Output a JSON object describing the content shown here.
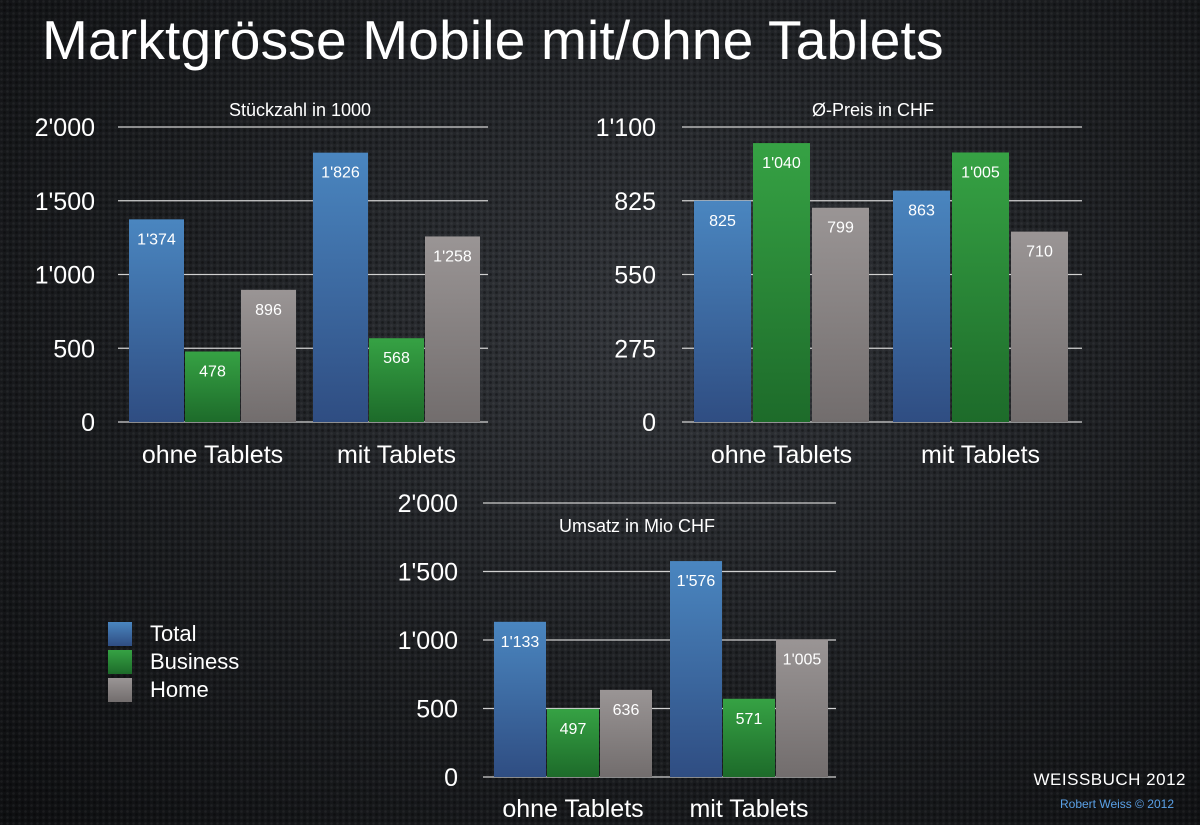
{
  "title": "Marktgrösse Mobile mit/ohne Tablets",
  "colors": {
    "total": "#3f73a6",
    "business": "#2c8a38",
    "home": "#8a8585",
    "gridline": "#d0d0d0"
  },
  "legend": [
    {
      "label": "Total",
      "color": "#3f73a6"
    },
    {
      "label": "Business",
      "color": "#2c8a38"
    },
    {
      "label": "Home",
      "color": "#8a8585"
    }
  ],
  "footer": {
    "brand": "WEISSBUCH 2012",
    "copyright": "Robert Weiss © 2012"
  },
  "chart_data": [
    {
      "type": "bar",
      "title": "Stückzahl in 1000",
      "categories": [
        "ohne Tablets",
        "mit Tablets"
      ],
      "series": [
        {
          "name": "Total",
          "values": [
            1374,
            1826
          ],
          "labels": [
            "1'374",
            "1'826"
          ]
        },
        {
          "name": "Business",
          "values": [
            478,
            568
          ],
          "labels": [
            "478",
            "568"
          ]
        },
        {
          "name": "Home",
          "values": [
            896,
            1258
          ],
          "labels": [
            "896",
            "1'258"
          ]
        }
      ],
      "ylim": [
        0,
        2000
      ],
      "yticks": [
        0,
        500,
        1000,
        1500,
        2000
      ],
      "ytick_labels": [
        "0",
        "500",
        "1'000",
        "1'500",
        "2'000"
      ],
      "grid": true,
      "legend": "left"
    },
    {
      "type": "bar",
      "title": "Ø-Preis in CHF",
      "categories": [
        "ohne Tablets",
        "mit Tablets"
      ],
      "series": [
        {
          "name": "Total",
          "values": [
            825,
            863
          ],
          "labels": [
            "825",
            "863"
          ]
        },
        {
          "name": "Business",
          "values": [
            1040,
            1005
          ],
          "labels": [
            "1'040",
            "1'005"
          ]
        },
        {
          "name": "Home",
          "values": [
            799,
            710
          ],
          "labels": [
            "799",
            "710"
          ]
        }
      ],
      "ylim": [
        0,
        1100
      ],
      "yticks": [
        0,
        275,
        550,
        825,
        1100
      ],
      "ytick_labels": [
        "0",
        "275",
        "550",
        "825",
        "1'100"
      ],
      "grid": true,
      "legend": "left"
    },
    {
      "type": "bar",
      "title": "Umsatz in Mio CHF",
      "categories": [
        "ohne Tablets",
        "mit Tablets"
      ],
      "series": [
        {
          "name": "Total",
          "values": [
            1133,
            1576
          ],
          "labels": [
            "1'133",
            "1'576"
          ]
        },
        {
          "name": "Business",
          "values": [
            497,
            571
          ],
          "labels": [
            "497",
            "571"
          ]
        },
        {
          "name": "Home",
          "values": [
            636,
            1005
          ],
          "labels": [
            "636",
            "1'005"
          ]
        }
      ],
      "ylim": [
        0,
        2000
      ],
      "yticks": [
        0,
        500,
        1000,
        1500,
        2000
      ],
      "ytick_labels": [
        "0",
        "500",
        "1'000",
        "1'500",
        "2'000"
      ],
      "grid": true,
      "legend": "left"
    }
  ]
}
